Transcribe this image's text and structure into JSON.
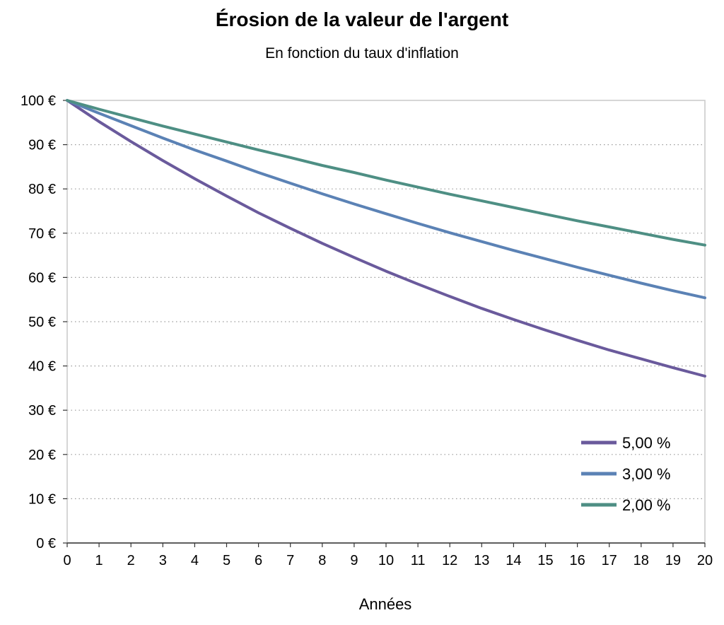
{
  "chart_data": {
    "type": "line",
    "title": "Érosion de la valeur de l'argent",
    "subtitle": "En fonction du taux d'inflation",
    "xlabel": "Années",
    "ylabel": "",
    "x": [
      0,
      1,
      2,
      3,
      4,
      5,
      6,
      7,
      8,
      9,
      10,
      11,
      12,
      13,
      14,
      15,
      16,
      17,
      18,
      19,
      20
    ],
    "xlim": [
      0,
      20
    ],
    "ylim": [
      0,
      100
    ],
    "y_ticks": [
      "0 €",
      "10 €",
      "20 €",
      "30 €",
      "40 €",
      "50 €",
      "60 €",
      "70 €",
      "80 €",
      "90 €",
      "100 €"
    ],
    "x_ticks": [
      "0",
      "1",
      "2",
      "3",
      "4",
      "5",
      "6",
      "7",
      "8",
      "9",
      "10",
      "11",
      "12",
      "13",
      "14",
      "15",
      "16",
      "17",
      "18",
      "19",
      "20"
    ],
    "grid": "horizontal dotted",
    "legend_position": "bottom-right",
    "series": [
      {
        "name": "5,00 %",
        "color": "#6a5a9c",
        "values": [
          100,
          95.2,
          90.7,
          86.4,
          82.3,
          78.4,
          74.6,
          71.1,
          67.7,
          64.5,
          61.4,
          58.5,
          55.7,
          53.0,
          50.5,
          48.1,
          45.8,
          43.6,
          41.6,
          39.6,
          37.7
        ]
      },
      {
        "name": "3,00 %",
        "color": "#5b82b5",
        "values": [
          100,
          97.1,
          94.3,
          91.5,
          88.8,
          86.3,
          83.7,
          81.3,
          78.9,
          76.6,
          74.4,
          72.2,
          70.1,
          68.1,
          66.1,
          64.2,
          62.3,
          60.5,
          58.7,
          57.0,
          55.4
        ]
      },
      {
        "name": "2,00 %",
        "color": "#4e8f84",
        "values": [
          100,
          98.0,
          96.1,
          94.2,
          92.4,
          90.6,
          88.8,
          87.1,
          85.3,
          83.7,
          82.0,
          80.4,
          78.8,
          77.3,
          75.8,
          74.3,
          72.8,
          71.4,
          70.0,
          68.6,
          67.3
        ]
      }
    ]
  }
}
